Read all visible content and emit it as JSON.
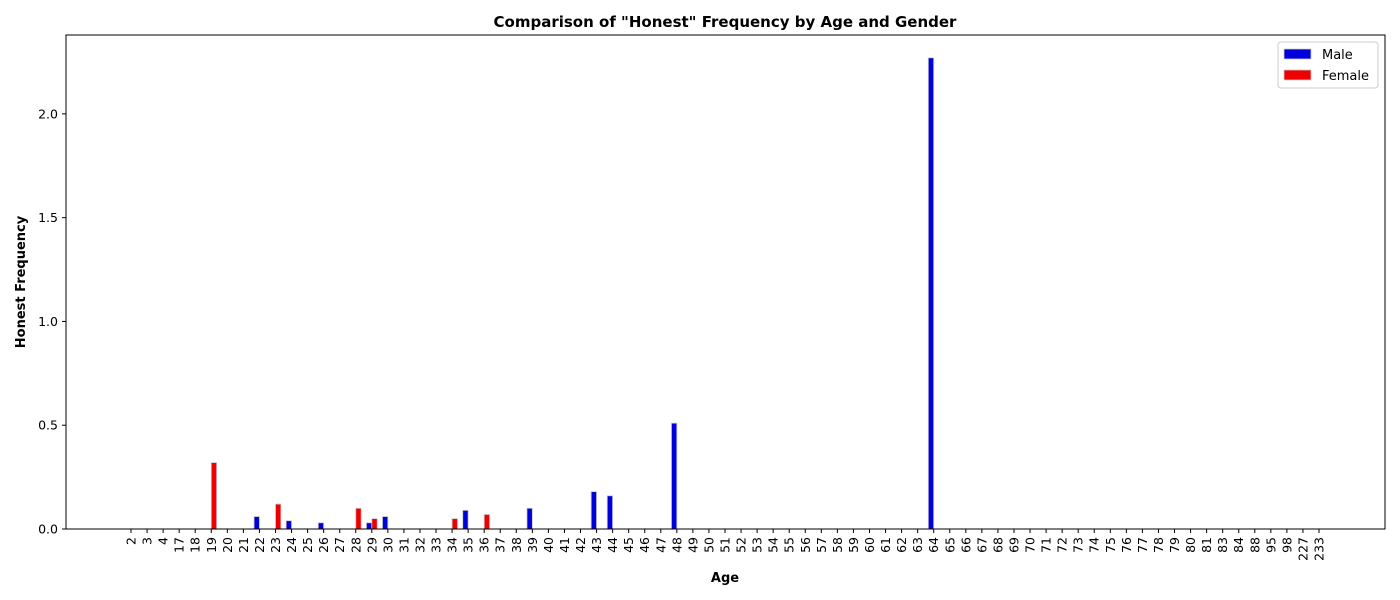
{
  "chart_data": {
    "type": "bar",
    "title": "Comparison of \"Honest\" Frequency by Age and Gender",
    "xlabel": "Age",
    "ylabel": "Honest Frequency",
    "ylim": [
      0,
      2.38
    ],
    "yticks": [
      "0.0",
      "0.5",
      "1.0",
      "1.5",
      "2.0"
    ],
    "grid": false,
    "legend_position": "top-right",
    "categories": [
      "2",
      "3",
      "4",
      "17",
      "18",
      "19",
      "20",
      "21",
      "22",
      "23",
      "24",
      "25",
      "26",
      "27",
      "28",
      "29",
      "30",
      "31",
      "32",
      "33",
      "34",
      "35",
      "36",
      "37",
      "38",
      "39",
      "40",
      "41",
      "42",
      "43",
      "44",
      "45",
      "46",
      "47",
      "48",
      "49",
      "50",
      "51",
      "52",
      "53",
      "54",
      "55",
      "56",
      "57",
      "58",
      "59",
      "60",
      "61",
      "62",
      "63",
      "64",
      "65",
      "66",
      "67",
      "68",
      "69",
      "70",
      "71",
      "72",
      "73",
      "74",
      "75",
      "76",
      "77",
      "78",
      "79",
      "80",
      "81",
      "83",
      "84",
      "88",
      "95",
      "98",
      "227",
      "233"
    ],
    "series": [
      {
        "name": "Male",
        "color": "#0000dd",
        "values": [
          0,
          0,
          0,
          0,
          0,
          0,
          0,
          0,
          0.06,
          0,
          0.04,
          0,
          0.03,
          0,
          0,
          0.03,
          0.06,
          0,
          0,
          0,
          0,
          0.09,
          0,
          0,
          0,
          0.1,
          0,
          0,
          0,
          0.18,
          0.16,
          0,
          0,
          0,
          0.51,
          0,
          0,
          0,
          0,
          0,
          0,
          0,
          0,
          0,
          0,
          0,
          0,
          0,
          0,
          0,
          2.27,
          0,
          0,
          0,
          0,
          0,
          0,
          0,
          0,
          0,
          0,
          0,
          0,
          0,
          0,
          0,
          0,
          0,
          0,
          0,
          0,
          0,
          0,
          0,
          0
        ]
      },
      {
        "name": "Female",
        "color": "#ee0000",
        "values": [
          0,
          0,
          0,
          0,
          0,
          0.32,
          0,
          0,
          0,
          0.12,
          0,
          0,
          0,
          0,
          0.1,
          0.05,
          0,
          0,
          0,
          0,
          0.05,
          0,
          0.07,
          0,
          0,
          0,
          0,
          0,
          0,
          0,
          0,
          0,
          0,
          0,
          0,
          0,
          0,
          0,
          0,
          0,
          0,
          0,
          0,
          0,
          0,
          0,
          0,
          0,
          0,
          0,
          0,
          0,
          0,
          0,
          0,
          0,
          0,
          0,
          0,
          0,
          0,
          0,
          0,
          0,
          0,
          0,
          0,
          0,
          0,
          0,
          0,
          0,
          0,
          0,
          0
        ]
      }
    ]
  }
}
